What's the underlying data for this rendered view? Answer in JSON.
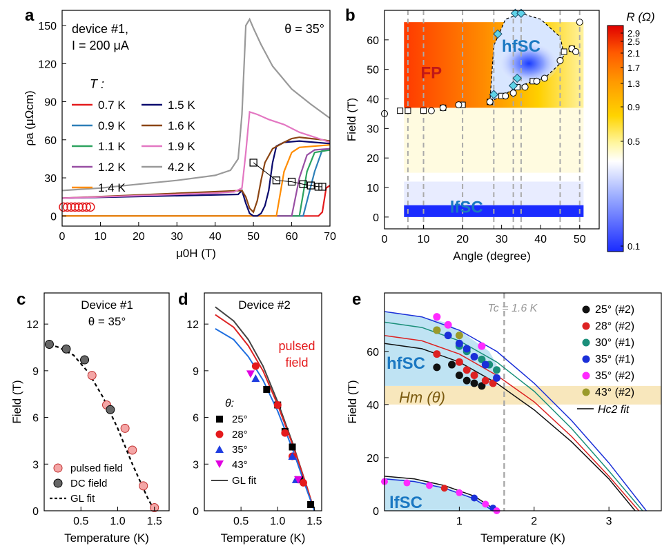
{
  "colors": {
    "t07": "#e41a1c",
    "t09": "#2c7fb8",
    "t11": "#2ca25f",
    "t12": "#984ea3",
    "t14": "#ff8c00",
    "t15": "#0a0a6e",
    "t16": "#8b4513",
    "t19": "#e377c2",
    "t42": "#999999",
    "pulsed": "#f4a6a6",
    "dc": "#666666",
    "d25": "#000000",
    "d28": "#e41a1c",
    "d35": "#1f3de0",
    "d43": "#e000e0",
    "e25": "#111111",
    "e28": "#dd2222",
    "e30": "#1a8f7a",
    "e35a": "#1a2fd8",
    "e35b": "#ff2aff",
    "e43": "#9a9a2a",
    "hfsc_fill": "#bfe3f3",
    "hm_band": "#f8e7bc",
    "hfsc_label": "#1a78c2"
  },
  "chart_data": [
    {
      "panel": "a",
      "type": "line",
      "annotation_lines": [
        "device #1,",
        "I = 200 μA"
      ],
      "theta_label": "θ = 35°",
      "legend_title": "T :",
      "xlabel": "μ0H (T)",
      "ylabel": "ρa (μΩcm)",
      "xlim": [
        0,
        70
      ],
      "ylim": [
        -8,
        162
      ],
      "xticks": [
        0,
        10,
        20,
        30,
        40,
        50,
        60,
        70
      ],
      "yticks": [
        0,
        30,
        60,
        90,
        120,
        150
      ],
      "series": [
        {
          "name": "0.7 K",
          "key": "t07",
          "x": [
            0,
            9,
            10,
            67,
            68,
            69,
            70
          ],
          "y": [
            0,
            0,
            0,
            0,
            3,
            22,
            24
          ]
        },
        {
          "name": "0.9 K",
          "key": "t09",
          "x": [
            0,
            8,
            9,
            63,
            66,
            68,
            70
          ],
          "y": [
            0,
            0,
            0,
            0,
            35,
            52,
            53
          ]
        },
        {
          "name": "1.1 K",
          "key": "t11",
          "x": [
            0,
            7,
            8,
            62,
            64,
            66,
            70
          ],
          "y": [
            0,
            0,
            0,
            0,
            35,
            50,
            52
          ]
        },
        {
          "name": "1.2 K",
          "key": "t12",
          "x": [
            0,
            6,
            7,
            60,
            62,
            64,
            66,
            70
          ],
          "y": [
            0,
            0,
            0,
            0,
            30,
            48,
            52,
            53
          ]
        },
        {
          "name": "1.4 K",
          "key": "t14",
          "x": [
            0,
            5,
            6,
            56,
            58,
            60,
            62,
            70
          ],
          "y": [
            0,
            0,
            0,
            0,
            35,
            50,
            54,
            56
          ]
        },
        {
          "name": "1.5 K",
          "key": "t15",
          "x": [
            0,
            46,
            47,
            48,
            49,
            50,
            51,
            52,
            53,
            54,
            55,
            56,
            58,
            62,
            66,
            70
          ],
          "y": [
            14,
            17,
            20,
            10,
            2,
            0,
            0,
            2,
            8,
            20,
            42,
            55,
            58,
            59,
            58,
            57
          ]
        },
        {
          "name": "1.6 K",
          "key": "t16",
          "x": [
            0,
            47,
            48,
            49,
            50,
            51,
            52,
            53,
            55,
            58,
            60,
            62,
            65,
            68,
            70
          ],
          "y": [
            14,
            20,
            15,
            6,
            3,
            12,
            28,
            42,
            53,
            58,
            61,
            62,
            61,
            60,
            59
          ]
        },
        {
          "name": "1.9 K",
          "key": "t19",
          "x": [
            0,
            10,
            20,
            30,
            40,
            45,
            47,
            48,
            49,
            51,
            54,
            58,
            62,
            66,
            70
          ],
          "y": [
            14,
            15,
            16,
            17,
            18,
            19,
            22,
            50,
            82,
            80,
            76,
            72,
            66,
            62,
            58
          ]
        },
        {
          "name": "4.2 K",
          "key": "t42",
          "x": [
            0,
            10,
            20,
            30,
            40,
            44,
            46,
            47,
            48,
            49,
            50,
            52,
            55,
            60,
            65,
            70
          ],
          "y": [
            20,
            22,
            25,
            28,
            32,
            36,
            45,
            80,
            150,
            155,
            148,
            135,
            118,
            100,
            88,
            77
          ]
        }
      ],
      "hm_markers": {
        "x": [
          50,
          56,
          60,
          63,
          65,
          67,
          68
        ],
        "y": [
          42,
          28,
          27,
          25,
          24,
          23,
          23
        ]
      },
      "hc2_markers": {
        "x": [
          0,
          1,
          2,
          3,
          4,
          5,
          6,
          7
        ],
        "y": [
          7,
          7,
          7,
          7,
          7,
          7,
          7,
          7
        ]
      }
    },
    {
      "panel": "b",
      "type": "heatmap",
      "xlabel": "Angle (degree)",
      "ylabel": "Field (T)",
      "xlim": [
        0,
        55
      ],
      "ylim": [
        -4,
        70
      ],
      "xticks": [
        0,
        10,
        20,
        30,
        40,
        50
      ],
      "yticks": [
        0,
        10,
        20,
        30,
        40,
        50,
        60
      ],
      "colorbar_title": "R (Ω)",
      "colorbar_ticks": [
        "2.9",
        "2.5",
        "2.1",
        "1.7",
        "1.3",
        "0.9",
        "0.5",
        "0.1"
      ],
      "colorbar_scale": "log",
      "region_labels": [
        "FP",
        "hfSC",
        "lfSC"
      ],
      "dashed_angles": [
        6,
        10,
        20,
        28,
        33,
        35,
        45,
        50
      ],
      "boundary_circles": {
        "x": [
          0,
          12,
          15,
          19,
          27,
          31,
          33,
          36,
          39,
          41,
          45,
          48,
          49,
          50
        ],
        "y": [
          35,
          36,
          37,
          38,
          39,
          41,
          42,
          44,
          46,
          47,
          53,
          57,
          56,
          66
        ]
      },
      "boundary_squares": {
        "x": [
          4,
          6,
          10,
          15,
          20,
          27,
          30,
          34,
          38,
          46,
          48
        ],
        "y": [
          36,
          36,
          36,
          37,
          38,
          39,
          41,
          44,
          46,
          56,
          57
        ]
      },
      "hfsc_diamonds": {
        "x": [
          28,
          29,
          33,
          33.5,
          34,
          35
        ],
        "y": [
          41.5,
          62,
          44.5,
          69,
          47,
          69
        ]
      },
      "hfsc_boundary": {
        "x": [
          27,
          30,
          34,
          38,
          41,
          45,
          46,
          45,
          40,
          35,
          31,
          28,
          27
        ],
        "y": [
          39,
          41,
          44,
          46,
          47,
          52,
          55,
          61,
          67,
          69,
          67,
          58,
          39
        ]
      }
    },
    {
      "panel": "c",
      "type": "scatter",
      "title": "Device #1",
      "theta_label": "θ = 35°",
      "xlabel": "Temperature (K)",
      "ylabel": "Field (T)",
      "xlim": [
        0,
        1.7
      ],
      "ylim": [
        0,
        14
      ],
      "xticks": [
        0.5,
        1.0,
        1.5
      ],
      "xticklabels": [
        "0.5",
        "1.0",
        "1.5"
      ],
      "yticks": [
        0,
        3,
        6,
        9,
        12
      ],
      "series": [
        {
          "name": "pulsed field",
          "key": "pulsed",
          "x": [
            0.65,
            0.85,
            1.1,
            1.2,
            1.35,
            1.5
          ],
          "y": [
            8.7,
            6.8,
            5.3,
            3.9,
            1.6,
            0.2
          ]
        },
        {
          "name": "DC field",
          "key": "dc",
          "x": [
            0.07,
            0.3,
            0.55,
            0.9
          ],
          "y": [
            10.7,
            10.4,
            9.7,
            6.5
          ]
        },
        {
          "name": "GL fit",
          "key": "fit",
          "x": [
            0.07,
            0.2,
            0.4,
            0.6,
            0.8,
            1.0,
            1.2,
            1.4,
            1.5
          ],
          "y": [
            10.7,
            10.5,
            10.0,
            8.9,
            7.3,
            5.3,
            3.0,
            0.9,
            0.0
          ]
        }
      ]
    },
    {
      "panel": "d",
      "type": "scatter",
      "title": "Device #2",
      "annotation_lines": [
        "pulsed",
        "field"
      ],
      "legend_title": "θ:",
      "xlabel": "Temperature (K)",
      "ylabel": "",
      "xlim": [
        0,
        1.6
      ],
      "ylim": [
        0,
        14
      ],
      "xticks": [
        0.5,
        1.0,
        1.5
      ],
      "xticklabels": [
        "0.5",
        "1.0",
        "1.5"
      ],
      "yticks": [
        0,
        3,
        6,
        9,
        12
      ],
      "series": [
        {
          "name": "25°",
          "key": "d25",
          "marker": "square",
          "x": [
            0.85,
            1.0,
            1.1,
            1.2,
            1.3,
            1.45
          ],
          "y": [
            7.8,
            6.8,
            5.1,
            4.1,
            2.0,
            0.4
          ]
        },
        {
          "name": "28°",
          "key": "d28",
          "marker": "circle",
          "x": [
            0.7,
            1.0,
            1.1,
            1.2,
            1.35
          ],
          "y": [
            9.3,
            6.8,
            5.0,
            3.5,
            1.8
          ]
        },
        {
          "name": "35°",
          "key": "d35",
          "marker": "triangle",
          "x": [
            0.7,
            1.2,
            1.25
          ],
          "y": [
            8.5,
            3.5,
            2.0
          ]
        },
        {
          "name": "43°",
          "key": "d43",
          "marker": "triangle-down",
          "x": [
            0.63,
            1.28
          ],
          "y": [
            8.8,
            2.0
          ]
        },
        {
          "name": "GL fit",
          "key": "fit",
          "x": [
            0.15,
            0.4,
            0.6,
            0.8,
            1.0,
            1.2,
            1.4,
            1.5
          ],
          "y": [
            13.1,
            12.2,
            11.0,
            9.3,
            7.0,
            4.4,
            1.5,
            0.0
          ]
        }
      ]
    },
    {
      "panel": "e",
      "type": "scatter",
      "tc_label": "Tc = 1.6 K",
      "tc_value": 1.6,
      "xlabel": "Temperature (K)",
      "ylabel": "Field (T)",
      "xlim": [
        0,
        3.7
      ],
      "ylim": [
        0,
        82
      ],
      "xticks": [
        1,
        2,
        3
      ],
      "yticks": [
        0,
        20,
        40,
        60
      ],
      "band_labels": [
        "hfSC",
        "lfSC"
      ],
      "hm_label": "Hm (θ)",
      "hm_band": [
        40,
        47
      ],
      "series": [
        {
          "name": "25° (#2)",
          "key": "e25",
          "x": [
            0.7,
            0.9,
            1.0,
            1.1,
            1.2,
            1.3
          ],
          "y": [
            54,
            55,
            51,
            49,
            48,
            47
          ]
        },
        {
          "name": "28° (#2)",
          "key": "e28",
          "x": [
            0.7,
            1.0,
            1.1,
            1.2,
            1.35,
            1.45
          ],
          "y": [
            59,
            56,
            53,
            51,
            49,
            48
          ]
        },
        {
          "name": "30° (#1)",
          "key": "e30",
          "x": [
            0.7,
            1.0,
            1.1,
            1.3,
            1.4,
            1.5
          ],
          "y": [
            68,
            62,
            60,
            57,
            55,
            53
          ]
        },
        {
          "name": "35° (#1)",
          "key": "e35a",
          "x": [
            0.85,
            1.0,
            1.1,
            1.2,
            1.35,
            1.5
          ],
          "y": [
            66,
            63,
            61,
            58,
            55,
            50
          ]
        },
        {
          "name": "35° (#2)",
          "key": "e35b",
          "x": [
            0.7,
            0.85,
            1.3
          ],
          "y": [
            73,
            70,
            62
          ]
        },
        {
          "name": "43° (#2)",
          "key": "e43",
          "x": [
            0.7,
            1.0
          ],
          "y": [
            68,
            66
          ]
        }
      ],
      "fit_label": "Hc2 fit",
      "fits": [
        {
          "key": "e25",
          "x": [
            0,
            0.5,
            1.0,
            1.5,
            2.0,
            2.5,
            3.0,
            3.35
          ],
          "y": [
            63,
            61,
            56,
            48,
            38,
            26,
            12,
            0
          ]
        },
        {
          "key": "e28",
          "x": [
            0,
            0.5,
            1.0,
            1.5,
            2.0,
            2.5,
            3.0,
            3.4
          ],
          "y": [
            66,
            64,
            59,
            51,
            41,
            28,
            13,
            0
          ]
        },
        {
          "key": "e30",
          "x": [
            0,
            0.5,
            1.0,
            1.5,
            2.0,
            2.5,
            3.0,
            3.45
          ],
          "y": [
            71,
            69,
            64,
            56,
            45,
            31,
            15,
            0
          ]
        },
        {
          "key": "e35a",
          "x": [
            0,
            0.5,
            1.0,
            1.5,
            2.0,
            2.5,
            3.0,
            3.5
          ],
          "y": [
            75,
            73,
            68,
            60,
            48,
            34,
            18,
            0
          ]
        }
      ],
      "lf_points": {
        "x": [
          0,
          0.3,
          0.6,
          0.8,
          1.0,
          1.2,
          1.35,
          1.45,
          1.5
        ],
        "y": [
          11,
          10.5,
          9.5,
          8.5,
          6.8,
          4.8,
          2.5,
          1.0,
          0
        ]
      },
      "lf_fits": [
        {
          "key": "e25",
          "x": [
            0,
            0.4,
            0.8,
            1.2,
            1.5
          ],
          "y": [
            13,
            12,
            9.5,
            5.5,
            0
          ]
        },
        {
          "key": "e35a",
          "x": [
            0,
            0.4,
            0.8,
            1.2,
            1.45
          ],
          "y": [
            12,
            11,
            8.5,
            4.5,
            0
          ]
        }
      ]
    }
  ],
  "panel_letters": [
    "a",
    "b",
    "c",
    "d",
    "e"
  ]
}
